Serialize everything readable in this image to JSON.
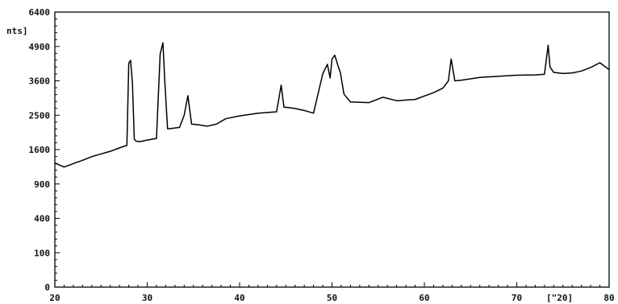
{
  "chart_data": {
    "type": "line",
    "title": "",
    "xlabel": "[°2θ]",
    "ylabel": "[Counts]",
    "y_unit_fragment": "nts]",
    "x_unit_text": "[°2θ]",
    "x_unit_display": "[\"20]",
    "xlim": [
      20,
      80
    ],
    "ylim": [
      0,
      6400
    ],
    "grid": false,
    "x_ticks": [
      20,
      30,
      40,
      50,
      60,
      70,
      80
    ],
    "x_tick_labels": [
      "20",
      "30",
      "40",
      "50",
      "60",
      "70",
      "80"
    ],
    "y_ticks": [
      0,
      100,
      400,
      900,
      1600,
      2500,
      3600,
      4900,
      6400
    ],
    "y_tick_labels": [
      "0",
      "100",
      "400",
      "900",
      "1600",
      "2500",
      "3600",
      "4900",
      "6400"
    ],
    "y_scale": "sqrt",
    "line_color": "#000000",
    "series": [
      {
        "x": [
          20,
          21,
          22,
          23,
          24,
          25,
          26,
          27,
          27.8,
          28.0,
          28.2,
          28.4,
          28.6,
          28.8,
          29.2,
          30,
          31.0,
          31.4,
          31.7,
          31.9,
          32.2,
          32.6,
          33.5,
          34.0,
          34.4,
          34.8,
          35.5,
          36.5,
          37.5,
          38.5,
          40,
          42,
          44,
          44.5,
          44.8,
          45.2,
          46,
          47,
          48,
          49.0,
          49.5,
          49.8,
          50.0,
          50.3,
          50.6,
          50.9,
          51.3,
          52,
          54,
          55.5,
          57,
          59,
          61,
          62.0,
          62.6,
          62.9,
          63.3,
          64,
          66,
          68,
          70,
          72,
          73,
          73.4,
          73.6,
          74.0,
          75,
          76,
          77,
          78,
          79,
          80
        ],
        "y": [
          1300,
          1220,
          1290,
          1360,
          1440,
          1500,
          1560,
          1640,
          1700,
          4250,
          4350,
          3500,
          1850,
          1800,
          1790,
          1830,
          1870,
          4600,
          5050,
          3600,
          2120,
          2130,
          2160,
          2500,
          3100,
          2250,
          2230,
          2190,
          2250,
          2400,
          2480,
          2560,
          2600,
          3450,
          2740,
          2730,
          2700,
          2640,
          2560,
          3850,
          4200,
          3700,
          4400,
          4550,
          4200,
          3900,
          3150,
          2900,
          2880,
          3050,
          2940,
          2980,
          3200,
          3350,
          3600,
          4400,
          3600,
          3620,
          3720,
          3760,
          3800,
          3810,
          3830,
          4950,
          4100,
          3900,
          3860,
          3880,
          3950,
          4080,
          4260,
          4000
        ]
      }
    ]
  }
}
